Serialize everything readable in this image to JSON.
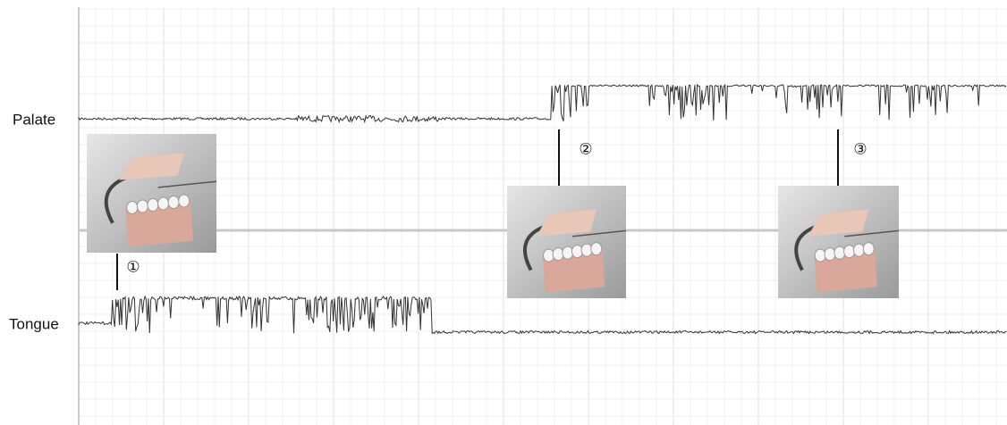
{
  "labels": {
    "palate": "Palate",
    "tongue": "Tongue"
  },
  "markers": [
    "①",
    "②",
    "③"
  ]
}
